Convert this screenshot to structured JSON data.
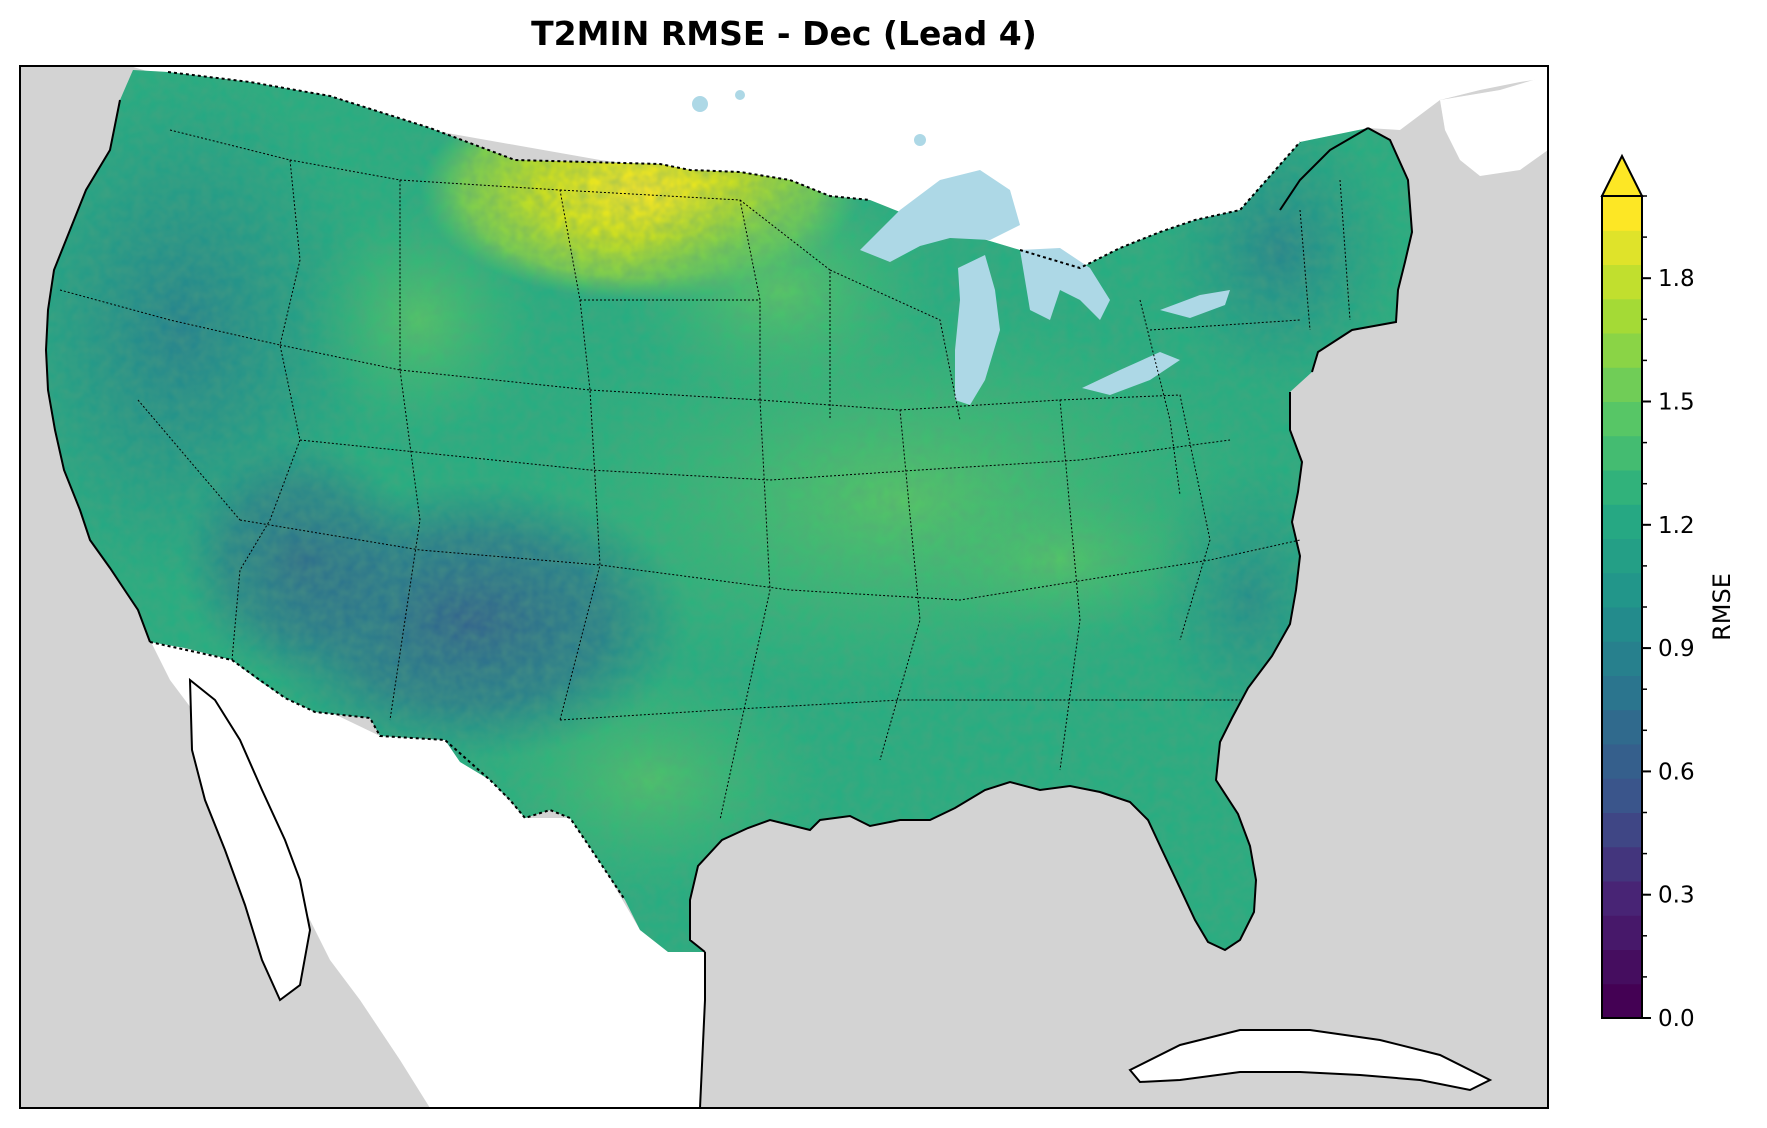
{
  "title": "T2MIN RMSE - Dec (Lead 4)",
  "colorbar": {
    "label": "RMSE",
    "min": 0.0,
    "max": 2.0,
    "levels": 24,
    "extend": "max",
    "colormap": "viridis",
    "major_ticks": [
      {
        "value": 0.0,
        "label": "0.0"
      },
      {
        "value": 0.3,
        "label": "0.3"
      },
      {
        "value": 0.6,
        "label": "0.6"
      },
      {
        "value": 0.9,
        "label": "0.9"
      },
      {
        "value": 1.2,
        "label": "1.2"
      },
      {
        "value": 1.5,
        "label": "1.5"
      },
      {
        "value": 1.8,
        "label": "1.8"
      }
    ],
    "minor_step": 0.1
  },
  "colors": {
    "ocean": "#d3d3d3",
    "lakes": "#add8e6",
    "land_no_data": "#ffffff",
    "border": "#000000"
  },
  "chart_data": {
    "type": "heatmap",
    "variable": "T2MIN RMSE",
    "month": "Dec",
    "lead": 4,
    "region": "CONUS",
    "value_range": [
      0.6,
      1.9
    ],
    "notable_regions": [
      {
        "region": "North Dakota / northern Minnesota",
        "rmse": 1.9
      },
      {
        "region": "Southwest (Four Corners)",
        "rmse": 0.7
      },
      {
        "region": "Texas / Gulf Coast",
        "rmse": 1.2
      },
      {
        "region": "Northeast",
        "rmse": 1.1
      },
      {
        "region": "West Coast",
        "rmse": 1.1
      }
    ]
  }
}
